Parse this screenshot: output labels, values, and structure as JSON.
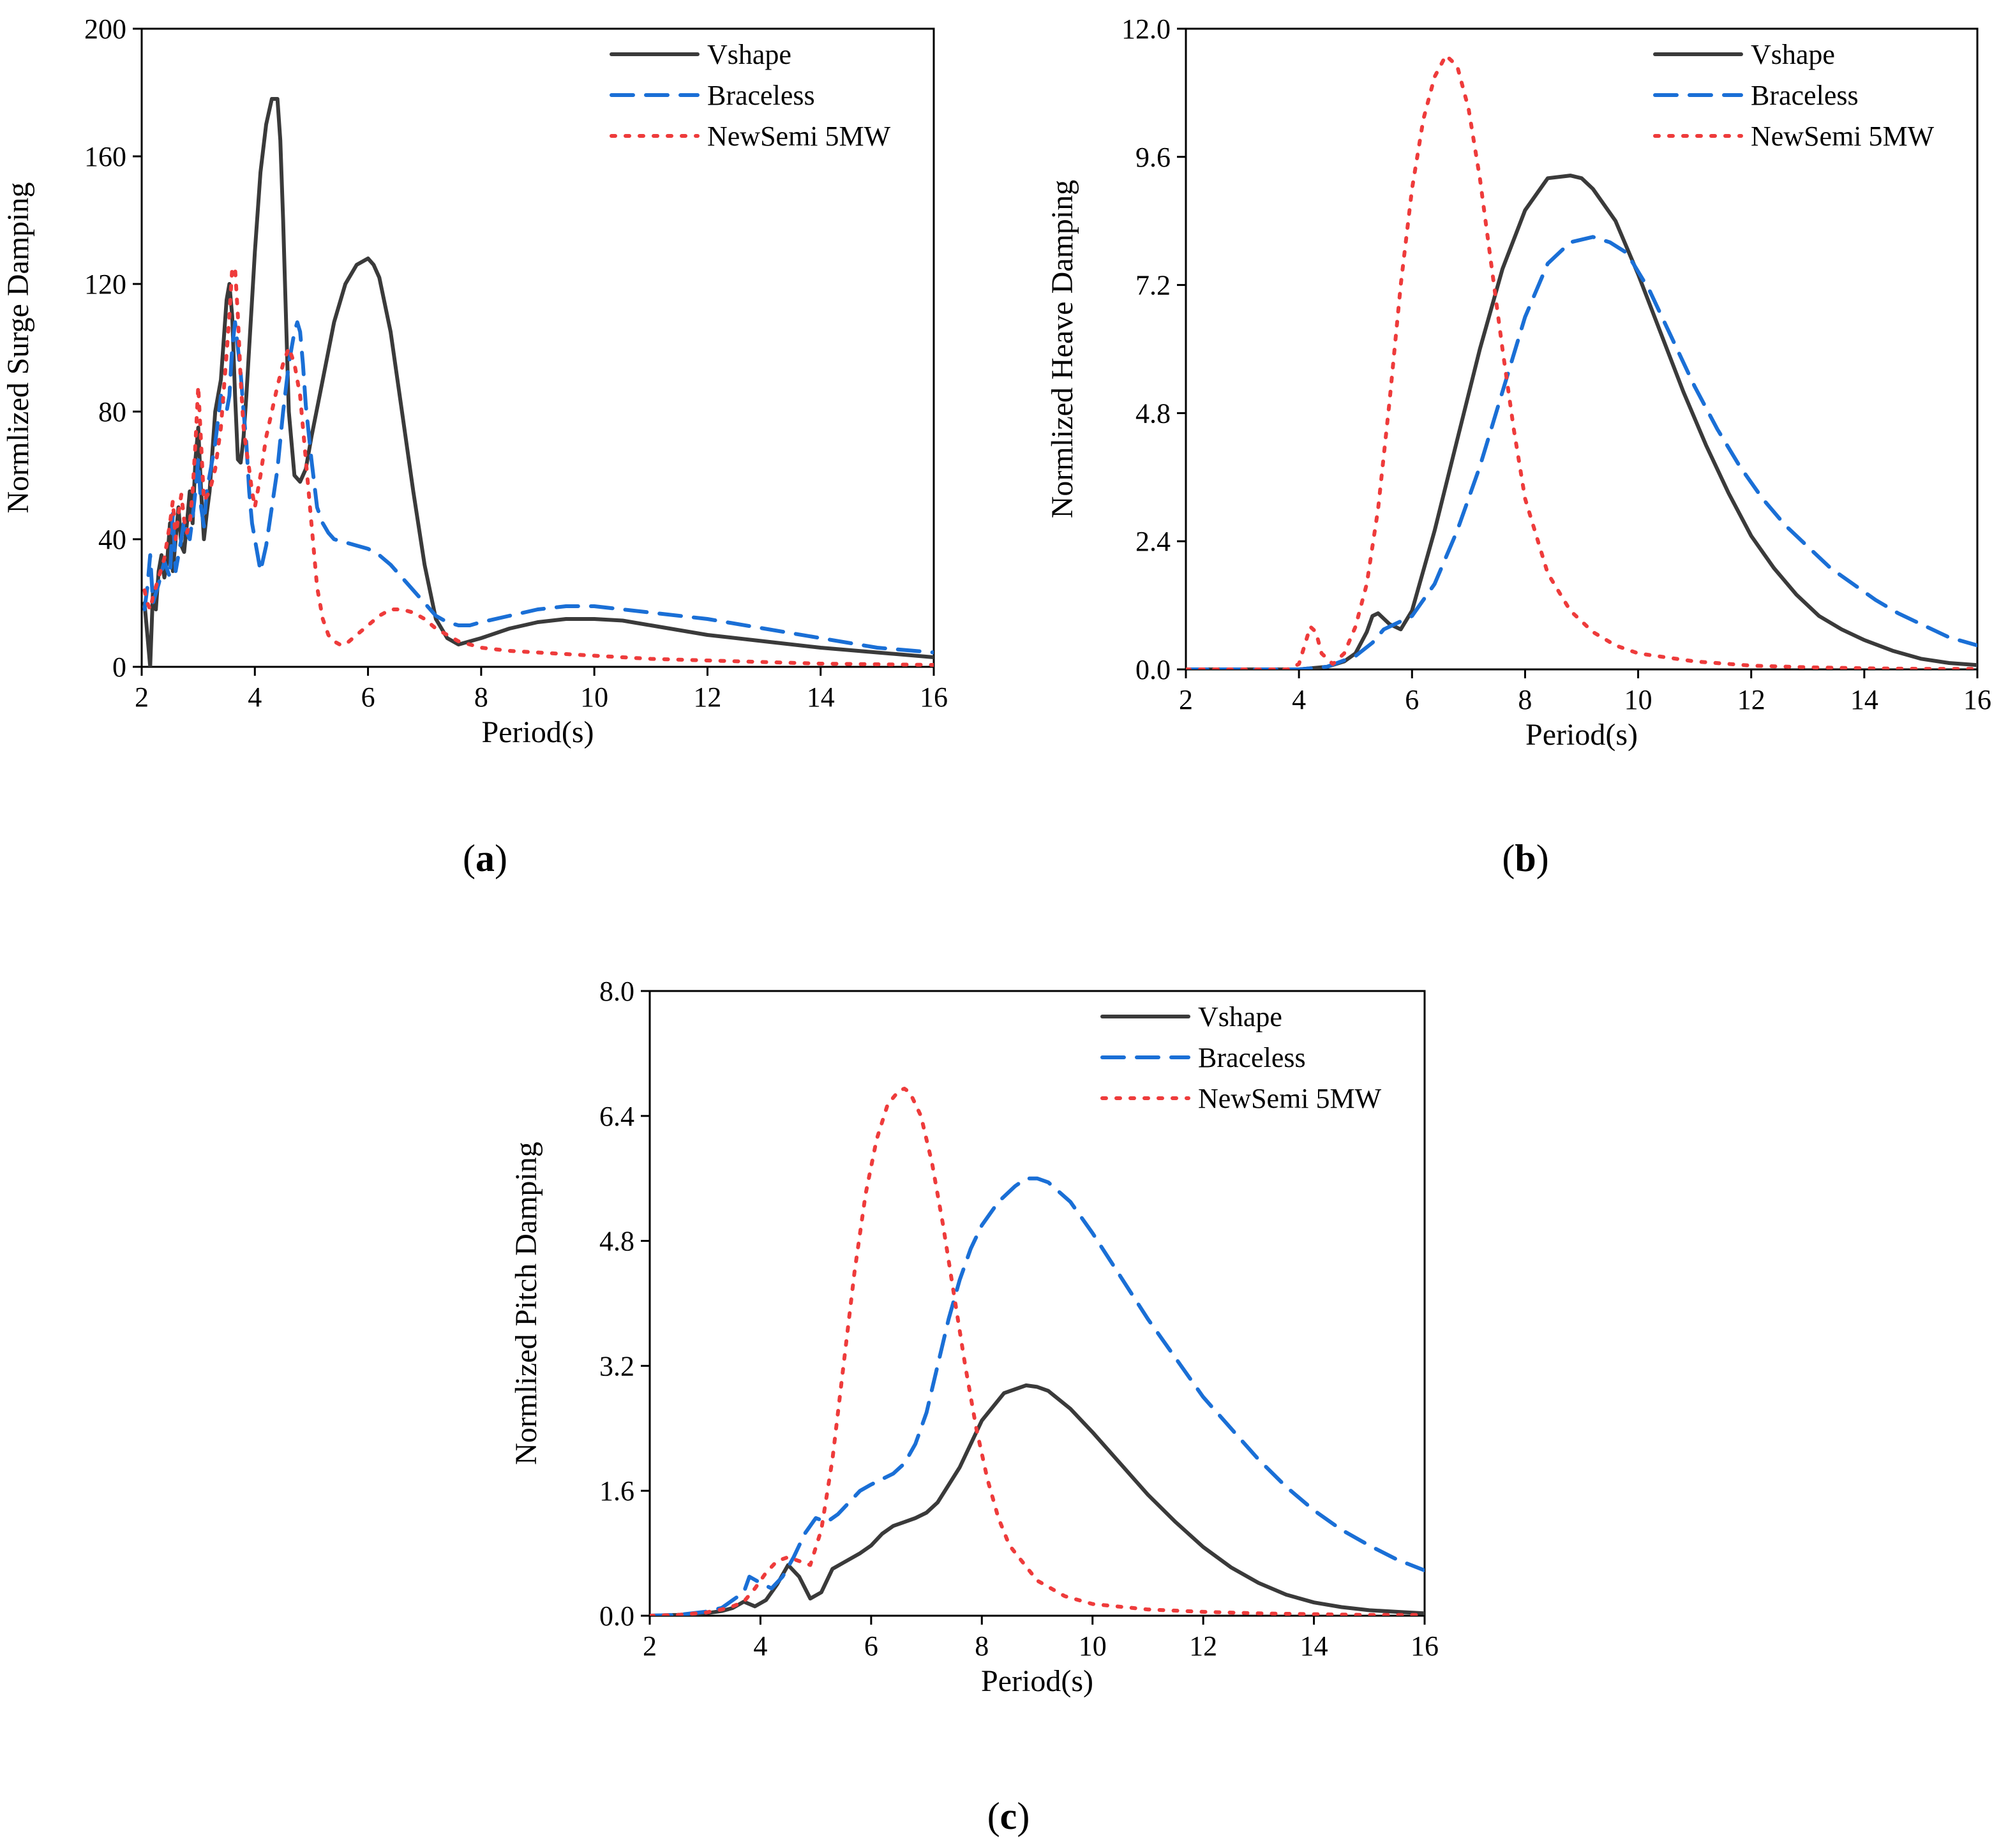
{
  "colors": {
    "Vshape": "#3a3a3a",
    "Braceless": "#1a6fd6",
    "NewSemi 5MW": "#ee3b3b"
  },
  "chart_data": [
    {
      "type": "line",
      "panel": "(a)",
      "panel_letter": "a",
      "xlabel": "Period(s)",
      "ylabel": "Normlized Surge Damping",
      "xlim": [
        2,
        16
      ],
      "ylim": [
        0,
        200
      ],
      "xticks": [
        2,
        4,
        6,
        8,
        10,
        12,
        14,
        16
      ],
      "xtick_labels": [
        "2",
        "4",
        "6",
        "8",
        "10",
        "12",
        "14",
        "16"
      ],
      "yticks": [
        0,
        40,
        80,
        120,
        160,
        200
      ],
      "ytick_labels": [
        "0",
        "40",
        "80",
        "120",
        "160",
        "200"
      ],
      "legend_position": "top-right",
      "series": [
        {
          "name": "Vshape",
          "style": "solid",
          "x": [
            2.05,
            2.1,
            2.15,
            2.2,
            2.25,
            2.3,
            2.35,
            2.4,
            2.45,
            2.5,
            2.55,
            2.6,
            2.65,
            2.7,
            2.75,
            2.8,
            2.85,
            2.9,
            2.95,
            3.0,
            3.05,
            3.1,
            3.15,
            3.2,
            3.3,
            3.4,
            3.5,
            3.55,
            3.6,
            3.65,
            3.7,
            3.75,
            3.8,
            3.85,
            3.9,
            3.95,
            4.0,
            4.1,
            4.2,
            4.3,
            4.4,
            4.45,
            4.5,
            4.55,
            4.6,
            4.7,
            4.8,
            4.9,
            5.0,
            5.2,
            5.4,
            5.6,
            5.8,
            6.0,
            6.1,
            6.2,
            6.4,
            6.6,
            6.8,
            7.0,
            7.2,
            7.4,
            7.6,
            7.8,
            8.0,
            8.5,
            9.0,
            9.5,
            10.0,
            10.5,
            11,
            12,
            13,
            14,
            15,
            16
          ],
          "y": [
            20,
            10,
            0,
            24,
            18,
            30,
            35,
            28,
            33,
            45,
            30,
            40,
            50,
            38,
            36,
            45,
            55,
            45,
            65,
            75,
            55,
            40,
            48,
            55,
            80,
            90,
            115,
            120,
            110,
            85,
            65,
            64,
            72,
            85,
            100,
            115,
            130,
            155,
            170,
            178,
            178,
            165,
            140,
            110,
            80,
            60,
            58,
            62,
            72,
            90,
            108,
            120,
            126,
            128,
            126,
            122,
            105,
            80,
            55,
            32,
            15,
            9,
            7,
            8,
            9,
            12,
            14,
            15,
            15,
            14.5,
            13,
            10,
            8,
            6,
            4.5,
            3
          ]
        },
        {
          "name": "Braceless",
          "style": "dashed",
          "x": [
            2.05,
            2.1,
            2.15,
            2.2,
            2.3,
            2.4,
            2.5,
            2.55,
            2.6,
            2.65,
            2.7,
            2.75,
            2.8,
            2.85,
            2.9,
            2.95,
            3.0,
            3.05,
            3.1,
            3.15,
            3.2,
            3.3,
            3.4,
            3.5,
            3.55,
            3.6,
            3.65,
            3.7,
            3.75,
            3.8,
            3.85,
            3.9,
            3.95,
            4.0,
            4.05,
            4.1,
            4.2,
            4.3,
            4.4,
            4.5,
            4.6,
            4.7,
            4.75,
            4.8,
            4.85,
            4.9,
            5.0,
            5.1,
            5.2,
            5.3,
            5.4,
            5.6,
            5.8,
            6.0,
            6.2,
            6.4,
            6.6,
            6.8,
            7.0,
            7.2,
            7.4,
            7.6,
            7.8,
            8.0,
            8.5,
            9.0,
            9.5,
            10.0,
            10.5,
            11,
            12,
            13,
            14,
            15,
            16
          ],
          "y": [
            18,
            25,
            35,
            20,
            26,
            33,
            28,
            48,
            30,
            35,
            40,
            46,
            42,
            40,
            47,
            55,
            65,
            50,
            44,
            55,
            60,
            70,
            85,
            80,
            85,
            100,
            108,
            100,
            92,
            80,
            70,
            55,
            45,
            40,
            35,
            30,
            38,
            50,
            62,
            80,
            95,
            105,
            108,
            105,
            95,
            82,
            65,
            50,
            45,
            42,
            40,
            39,
            38,
            37,
            35,
            32,
            28,
            24,
            20,
            16,
            14,
            13,
            13,
            14,
            16,
            18,
            19,
            19,
            18,
            17,
            15,
            12,
            9,
            6,
            4.5
          ]
        },
        {
          "name": "NewSemi 5MW",
          "style": "dotted",
          "x": [
            2.05,
            2.1,
            2.15,
            2.2,
            2.3,
            2.4,
            2.5,
            2.55,
            2.6,
            2.65,
            2.7,
            2.75,
            2.8,
            2.85,
            2.9,
            2.95,
            3.0,
            3.05,
            3.1,
            3.2,
            3.3,
            3.4,
            3.5,
            3.55,
            3.6,
            3.65,
            3.7,
            3.75,
            3.8,
            3.85,
            3.9,
            3.95,
            4.0,
            4.1,
            4.2,
            4.3,
            4.4,
            4.5,
            4.6,
            4.7,
            4.8,
            4.9,
            5.0,
            5.1,
            5.2,
            5.3,
            5.4,
            5.5,
            5.6,
            5.8,
            6.0,
            6.2,
            6.4,
            6.6,
            6.8,
            7.0,
            7.2,
            7.4,
            7.6,
            7.8,
            8.0,
            8.5,
            9.0,
            9.5,
            10.0,
            10.5,
            11,
            12,
            13,
            14,
            15,
            16
          ],
          "y": [
            24,
            20,
            18,
            22,
            28,
            34,
            45,
            52,
            40,
            48,
            54,
            46,
            42,
            45,
            55,
            70,
            88,
            70,
            52,
            55,
            62,
            75,
            98,
            110,
            125,
            125,
            110,
            90,
            75,
            68,
            62,
            55,
            50,
            60,
            72,
            80,
            88,
            95,
            100,
            95,
            85,
            65,
            45,
            25,
            15,
            10,
            8,
            7,
            7,
            10,
            13,
            16,
            18,
            18,
            17,
            15,
            12,
            10,
            8,
            7,
            6,
            5,
            4.5,
            4,
            3.5,
            3,
            2.5,
            2,
            1.5,
            1,
            0.8,
            0.6
          ]
        }
      ]
    },
    {
      "type": "line",
      "panel": "(b)",
      "panel_letter": "b",
      "xlabel": "Period(s)",
      "ylabel": "Normlized Heave Damping",
      "xlim": [
        2,
        16
      ],
      "ylim": [
        0,
        12
      ],
      "xticks": [
        2,
        4,
        6,
        8,
        10,
        12,
        14,
        16
      ],
      "xtick_labels": [
        "2",
        "4",
        "6",
        "8",
        "10",
        "12",
        "14",
        "16"
      ],
      "yticks": [
        0,
        2.4,
        4.8,
        7.2,
        9.6,
        12
      ],
      "ytick_labels": [
        "0.0",
        "2.4",
        "4.8",
        "7.2",
        "9.6",
        "12.0"
      ],
      "legend_position": "top-right",
      "series": [
        {
          "name": "Vshape",
          "style": "solid",
          "x": [
            2,
            3,
            4,
            4.5,
            4.8,
            5.0,
            5.2,
            5.3,
            5.4,
            5.5,
            5.6,
            5.8,
            6.0,
            6.4,
            6.8,
            7.2,
            7.6,
            8.0,
            8.4,
            8.8,
            9.0,
            9.2,
            9.6,
            10.0,
            10.4,
            10.8,
            11.2,
            11.6,
            12.0,
            12.4,
            12.8,
            13.2,
            13.6,
            14.0,
            14.5,
            15.0,
            15.5,
            16.0
          ],
          "y": [
            0,
            0,
            0,
            0.05,
            0.15,
            0.3,
            0.7,
            1.0,
            1.05,
            0.95,
            0.85,
            0.75,
            1.1,
            2.6,
            4.3,
            6.0,
            7.5,
            8.6,
            9.2,
            9.25,
            9.2,
            9.0,
            8.4,
            7.4,
            6.3,
            5.2,
            4.2,
            3.3,
            2.5,
            1.9,
            1.4,
            1.0,
            0.75,
            0.55,
            0.35,
            0.2,
            0.12,
            0.08
          ]
        },
        {
          "name": "Braceless",
          "style": "dashed",
          "x": [
            2,
            3,
            4,
            4.5,
            5.0,
            5.3,
            5.5,
            5.8,
            6.0,
            6.4,
            6.8,
            7.2,
            7.6,
            8.0,
            8.4,
            8.8,
            9.2,
            9.5,
            9.8,
            10.2,
            10.6,
            11.0,
            11.4,
            11.8,
            12.2,
            12.6,
            13.0,
            13.4,
            13.8,
            14.2,
            14.6,
            15.0,
            15.5,
            16.0
          ],
          "y": [
            0,
            0,
            0,
            0.05,
            0.25,
            0.5,
            0.75,
            0.9,
            1.0,
            1.6,
            2.6,
            3.8,
            5.2,
            6.6,
            7.6,
            8.0,
            8.1,
            8.0,
            7.8,
            7.1,
            6.2,
            5.3,
            4.5,
            3.8,
            3.2,
            2.7,
            2.3,
            1.9,
            1.6,
            1.3,
            1.05,
            0.85,
            0.6,
            0.45
          ]
        },
        {
          "name": "NewSemi 5MW",
          "style": "dotted",
          "x": [
            2,
            3,
            3.8,
            4.0,
            4.1,
            4.2,
            4.3,
            4.4,
            4.6,
            4.8,
            5.0,
            5.2,
            5.4,
            5.6,
            5.8,
            6.0,
            6.2,
            6.4,
            6.6,
            6.8,
            7.0,
            7.2,
            7.4,
            7.6,
            7.8,
            8.0,
            8.4,
            8.8,
            9.2,
            9.6,
            10,
            11,
            12,
            13,
            14,
            15,
            16
          ],
          "y": [
            0,
            0,
            0,
            0.1,
            0.45,
            0.8,
            0.7,
            0.3,
            0.1,
            0.3,
            0.8,
            1.6,
            3.0,
            5.0,
            7.2,
            9.0,
            10.3,
            11.1,
            11.5,
            11.3,
            10.5,
            9.2,
            7.6,
            6.0,
            4.5,
            3.2,
            1.8,
            1.1,
            0.7,
            0.45,
            0.3,
            0.15,
            0.07,
            0.04,
            0.02,
            0.01,
            0.01
          ]
        }
      ]
    },
    {
      "type": "line",
      "panel": "(c)",
      "panel_letter": "c",
      "xlabel": "Period(s)",
      "ylabel": "Normlized Pitch Damping",
      "xlim": [
        2,
        16
      ],
      "ylim": [
        0,
        8
      ],
      "xticks": [
        2,
        4,
        6,
        8,
        10,
        12,
        14,
        16
      ],
      "xtick_labels": [
        "2",
        "4",
        "6",
        "8",
        "10",
        "12",
        "14",
        "16"
      ],
      "yticks": [
        0,
        1.6,
        3.2,
        4.8,
        6.4,
        8
      ],
      "ytick_labels": [
        "0.0",
        "1.6",
        "3.2",
        "4.8",
        "6.4",
        "8.0"
      ],
      "legend_position": "top-right",
      "series": [
        {
          "name": "Vshape",
          "style": "solid",
          "x": [
            2.0,
            2.5,
            3.0,
            3.3,
            3.5,
            3.7,
            3.9,
            4.1,
            4.3,
            4.5,
            4.7,
            4.9,
            5.1,
            5.3,
            5.5,
            5.8,
            6.0,
            6.2,
            6.4,
            6.6,
            6.8,
            7.0,
            7.2,
            7.6,
            8.0,
            8.4,
            8.8,
            9.0,
            9.2,
            9.6,
            10.0,
            10.5,
            11,
            11.5,
            12,
            12.5,
            13,
            13.5,
            14,
            14.5,
            15,
            15.5,
            16
          ],
          "y": [
            0,
            0.01,
            0.03,
            0.06,
            0.1,
            0.18,
            0.12,
            0.2,
            0.4,
            0.65,
            0.5,
            0.22,
            0.3,
            0.6,
            0.68,
            0.8,
            0.9,
            1.05,
            1.15,
            1.2,
            1.25,
            1.32,
            1.45,
            1.9,
            2.5,
            2.85,
            2.95,
            2.93,
            2.88,
            2.65,
            2.35,
            1.95,
            1.55,
            1.2,
            0.88,
            0.62,
            0.42,
            0.27,
            0.17,
            0.11,
            0.07,
            0.05,
            0.03
          ]
        },
        {
          "name": "Braceless",
          "style": "dashed",
          "x": [
            2.0,
            2.5,
            3.0,
            3.3,
            3.5,
            3.7,
            3.8,
            4.0,
            4.2,
            4.4,
            4.6,
            4.8,
            5.0,
            5.2,
            5.4,
            5.6,
            5.8,
            6.0,
            6.2,
            6.4,
            6.6,
            6.8,
            7.0,
            7.2,
            7.4,
            7.6,
            7.8,
            8.0,
            8.3,
            8.6,
            8.8,
            9.0,
            9.2,
            9.6,
            10.0,
            10.5,
            11,
            11.5,
            12,
            12.5,
            13,
            13.5,
            14,
            14.5,
            15,
            15.5,
            16
          ],
          "y": [
            0,
            0.01,
            0.05,
            0.1,
            0.2,
            0.3,
            0.5,
            0.42,
            0.35,
            0.5,
            0.75,
            1.05,
            1.25,
            1.2,
            1.3,
            1.45,
            1.6,
            1.68,
            1.75,
            1.82,
            1.95,
            2.2,
            2.6,
            3.2,
            3.8,
            4.3,
            4.7,
            5.0,
            5.3,
            5.5,
            5.6,
            5.6,
            5.55,
            5.3,
            4.9,
            4.35,
            3.8,
            3.3,
            2.8,
            2.4,
            2.0,
            1.65,
            1.35,
            1.1,
            0.9,
            0.72,
            0.58
          ]
        },
        {
          "name": "NewSemi 5MW",
          "style": "dotted",
          "x": [
            2.0,
            2.5,
            3.0,
            3.3,
            3.5,
            3.7,
            3.9,
            4.1,
            4.3,
            4.5,
            4.7,
            4.9,
            5.1,
            5.3,
            5.5,
            5.7,
            5.9,
            6.1,
            6.3,
            6.5,
            6.6,
            6.7,
            6.9,
            7.1,
            7.3,
            7.5,
            7.7,
            7.9,
            8.1,
            8.3,
            8.5,
            9.0,
            9.5,
            10,
            11,
            12,
            13,
            14,
            15,
            16
          ],
          "y": [
            0,
            0.01,
            0.04,
            0.08,
            0.12,
            0.18,
            0.35,
            0.55,
            0.7,
            0.75,
            0.7,
            0.65,
            1.1,
            2.0,
            3.2,
            4.4,
            5.4,
            6.1,
            6.55,
            6.72,
            6.75,
            6.7,
            6.4,
            5.8,
            5.0,
            4.1,
            3.2,
            2.4,
            1.75,
            1.25,
            0.9,
            0.45,
            0.25,
            0.15,
            0.08,
            0.05,
            0.03,
            0.02,
            0.01,
            0.01
          ]
        }
      ]
    }
  ]
}
